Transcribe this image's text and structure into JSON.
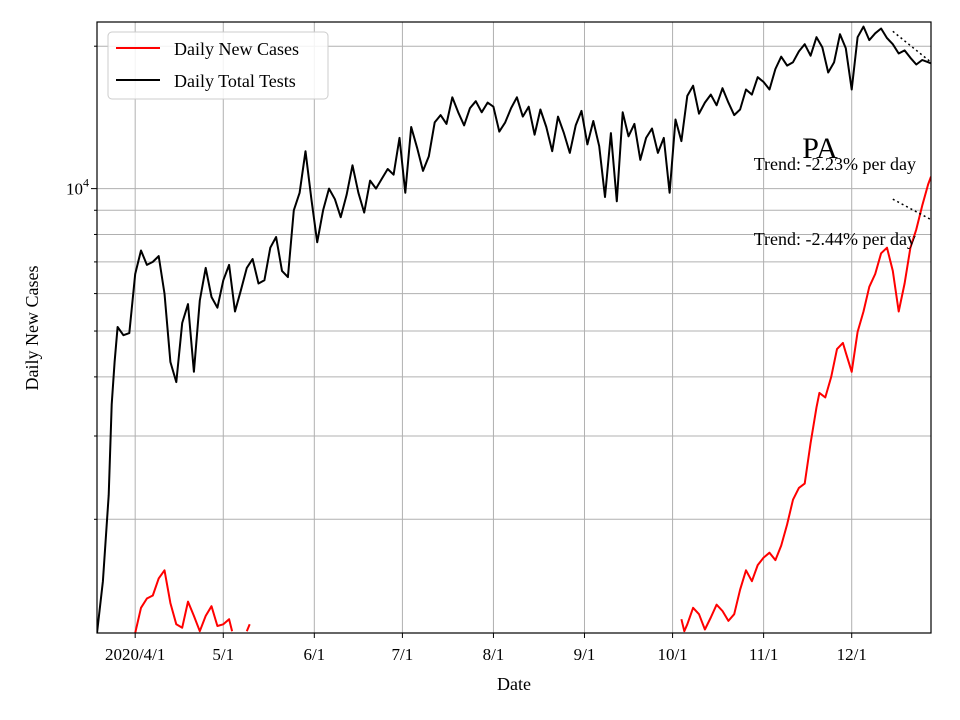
{
  "chart_data": {
    "type": "line",
    "title": "",
    "xlabel": "Date",
    "ylabel": "Daily New Cases",
    "y_scale": "log",
    "ylim": [
      1150,
      22500
    ],
    "xlim": [
      "2020-03-19",
      "2020-12-28"
    ],
    "grid": true,
    "legend_position": "upper-left",
    "x_ticks": [
      {
        "date": "2020-04-01",
        "label": "2020/4/1"
      },
      {
        "date": "2020-05-01",
        "label": "5/1"
      },
      {
        "date": "2020-06-01",
        "label": "6/1"
      },
      {
        "date": "2020-07-01",
        "label": "7/1"
      },
      {
        "date": "2020-08-01",
        "label": "8/1"
      },
      {
        "date": "2020-09-01",
        "label": "9/1"
      },
      {
        "date": "2020-10-01",
        "label": "10/1"
      },
      {
        "date": "2020-11-01",
        "label": "11/1"
      },
      {
        "date": "2020-12-01",
        "label": "12/1"
      }
    ],
    "y_major_tick": {
      "value": 10000,
      "label_base": "10",
      "label_exp": "4"
    },
    "y_minor_ticks": [
      2000,
      3000,
      4000,
      5000,
      6000,
      7000,
      8000,
      9000,
      20000
    ],
    "series": [
      {
        "name": "Daily New Cases",
        "color": "#ff0000",
        "points": [
          [
            "2020-04-01",
            1150
          ],
          [
            "2020-04-03",
            1300
          ],
          [
            "2020-04-05",
            1360
          ],
          [
            "2020-04-07",
            1380
          ],
          [
            "2020-04-09",
            1500
          ],
          [
            "2020-04-11",
            1560
          ],
          [
            "2020-04-13",
            1330
          ],
          [
            "2020-04-15",
            1200
          ],
          [
            "2020-04-17",
            1180
          ],
          [
            "2020-04-19",
            1340
          ],
          [
            "2020-04-21",
            1250
          ],
          [
            "2020-04-23",
            1160
          ],
          [
            "2020-04-25",
            1250
          ],
          [
            "2020-04-27",
            1310
          ],
          [
            "2020-04-29",
            1190
          ],
          [
            "2020-05-01",
            1200
          ],
          [
            "2020-05-03",
            1230
          ],
          [
            "2020-05-04",
            1160
          ],
          [
            null,
            null
          ],
          [
            "2020-05-09",
            1160
          ],
          [
            "2020-05-10",
            1200
          ],
          [
            null,
            null
          ],
          [
            "2020-10-04",
            1230
          ],
          [
            "2020-10-05",
            1160
          ],
          [
            "2020-10-06",
            1200
          ],
          [
            "2020-10-08",
            1300
          ],
          [
            "2020-10-10",
            1260
          ],
          [
            "2020-10-12",
            1170
          ],
          [
            "2020-10-14",
            1240
          ],
          [
            "2020-10-16",
            1320
          ],
          [
            "2020-10-18",
            1280
          ],
          [
            "2020-10-20",
            1220
          ],
          [
            "2020-10-22",
            1260
          ],
          [
            "2020-10-24",
            1420
          ],
          [
            "2020-10-26",
            1560
          ],
          [
            "2020-10-28",
            1480
          ],
          [
            "2020-10-30",
            1600
          ],
          [
            "2020-11-01",
            1660
          ],
          [
            "2020-11-03",
            1700
          ],
          [
            "2020-11-05",
            1640
          ],
          [
            "2020-11-07",
            1760
          ],
          [
            "2020-11-09",
            1950
          ],
          [
            "2020-11-11",
            2200
          ],
          [
            "2020-11-13",
            2330
          ],
          [
            "2020-11-15",
            2380
          ],
          [
            "2020-11-17",
            2900
          ],
          [
            "2020-11-19",
            3450
          ],
          [
            "2020-11-20",
            3700
          ],
          [
            "2020-11-22",
            3620
          ],
          [
            "2020-11-24",
            4000
          ],
          [
            "2020-11-26",
            4580
          ],
          [
            "2020-11-28",
            4720
          ],
          [
            "2020-11-29",
            4500
          ],
          [
            "2020-12-01",
            4100
          ],
          [
            "2020-12-03",
            4980
          ],
          [
            "2020-12-05",
            5500
          ],
          [
            "2020-12-07",
            6200
          ],
          [
            "2020-12-09",
            6600
          ],
          [
            "2020-12-11",
            7300
          ],
          [
            "2020-12-13",
            7500
          ],
          [
            "2020-12-15",
            6700
          ],
          [
            "2020-12-17",
            5500
          ],
          [
            "2020-12-19",
            6300
          ],
          [
            "2020-12-21",
            7500
          ],
          [
            "2020-12-23",
            8200
          ],
          [
            "2020-12-25",
            9200
          ],
          [
            "2020-12-27",
            10200
          ],
          [
            "2020-12-28",
            10600
          ]
        ]
      },
      {
        "name": "Daily Total Tests",
        "color": "#000000",
        "points": [
          [
            "2020-03-19",
            1150
          ],
          [
            "2020-03-21",
            1480
          ],
          [
            "2020-03-23",
            2250
          ],
          [
            "2020-03-24",
            3500
          ],
          [
            "2020-03-25",
            4300
          ],
          [
            "2020-03-26",
            5100
          ],
          [
            "2020-03-28",
            4900
          ],
          [
            "2020-03-30",
            4950
          ],
          [
            "2020-04-01",
            6600
          ],
          [
            "2020-04-03",
            7400
          ],
          [
            "2020-04-05",
            6900
          ],
          [
            "2020-04-07",
            7000
          ],
          [
            "2020-04-09",
            7200
          ],
          [
            "2020-04-11",
            6000
          ],
          [
            "2020-04-13",
            4300
          ],
          [
            "2020-04-15",
            3900
          ],
          [
            "2020-04-17",
            5200
          ],
          [
            "2020-04-19",
            5700
          ],
          [
            "2020-04-21",
            4100
          ],
          [
            "2020-04-23",
            5800
          ],
          [
            "2020-04-25",
            6800
          ],
          [
            "2020-04-27",
            5900
          ],
          [
            "2020-04-29",
            5600
          ],
          [
            "2020-05-01",
            6400
          ],
          [
            "2020-05-03",
            6900
          ],
          [
            "2020-05-05",
            5500
          ],
          [
            "2020-05-07",
            6100
          ],
          [
            "2020-05-09",
            6800
          ],
          [
            "2020-05-11",
            7100
          ],
          [
            "2020-05-13",
            6300
          ],
          [
            "2020-05-15",
            6400
          ],
          [
            "2020-05-17",
            7500
          ],
          [
            "2020-05-19",
            7900
          ],
          [
            "2020-05-21",
            6700
          ],
          [
            "2020-05-23",
            6500
          ],
          [
            "2020-05-25",
            9000
          ],
          [
            "2020-05-27",
            9800
          ],
          [
            "2020-05-29",
            12000
          ],
          [
            "2020-05-31",
            9500
          ],
          [
            "2020-06-02",
            7700
          ],
          [
            "2020-06-04",
            9000
          ],
          [
            "2020-06-06",
            10000
          ],
          [
            "2020-06-08",
            9500
          ],
          [
            "2020-06-10",
            8700
          ],
          [
            "2020-06-12",
            9700
          ],
          [
            "2020-06-14",
            11200
          ],
          [
            "2020-06-16",
            9800
          ],
          [
            "2020-06-18",
            8900
          ],
          [
            "2020-06-20",
            10400
          ],
          [
            "2020-06-22",
            10000
          ],
          [
            "2020-06-24",
            10500
          ],
          [
            "2020-06-26",
            11000
          ],
          [
            "2020-06-28",
            10700
          ],
          [
            "2020-06-30",
            12800
          ],
          [
            "2020-07-02",
            9800
          ],
          [
            "2020-07-04",
            13500
          ],
          [
            "2020-07-06",
            12200
          ],
          [
            "2020-07-08",
            10900
          ],
          [
            "2020-07-10",
            11700
          ],
          [
            "2020-07-12",
            13800
          ],
          [
            "2020-07-14",
            14300
          ],
          [
            "2020-07-16",
            13700
          ],
          [
            "2020-07-18",
            15600
          ],
          [
            "2020-07-20",
            14500
          ],
          [
            "2020-07-22",
            13600
          ],
          [
            "2020-07-24",
            14800
          ],
          [
            "2020-07-26",
            15300
          ],
          [
            "2020-07-28",
            14500
          ],
          [
            "2020-07-30",
            15200
          ],
          [
            "2020-08-01",
            14900
          ],
          [
            "2020-08-03",
            13200
          ],
          [
            "2020-08-05",
            13800
          ],
          [
            "2020-08-07",
            14800
          ],
          [
            "2020-08-09",
            15600
          ],
          [
            "2020-08-11",
            14200
          ],
          [
            "2020-08-13",
            14900
          ],
          [
            "2020-08-15",
            13000
          ],
          [
            "2020-08-17",
            14700
          ],
          [
            "2020-08-19",
            13500
          ],
          [
            "2020-08-21",
            12000
          ],
          [
            "2020-08-23",
            14200
          ],
          [
            "2020-08-25",
            13100
          ],
          [
            "2020-08-27",
            11900
          ],
          [
            "2020-08-29",
            13600
          ],
          [
            "2020-08-31",
            14600
          ],
          [
            "2020-09-02",
            12400
          ],
          [
            "2020-09-04",
            13900
          ],
          [
            "2020-09-06",
            12300
          ],
          [
            "2020-09-08",
            9600
          ],
          [
            "2020-09-10",
            13100
          ],
          [
            "2020-09-12",
            9400
          ],
          [
            "2020-09-14",
            14500
          ],
          [
            "2020-09-16",
            12900
          ],
          [
            "2020-09-18",
            13700
          ],
          [
            "2020-09-20",
            11500
          ],
          [
            "2020-09-22",
            12800
          ],
          [
            "2020-09-24",
            13400
          ],
          [
            "2020-09-26",
            11900
          ],
          [
            "2020-09-28",
            12800
          ],
          [
            "2020-09-30",
            9800
          ],
          [
            "2020-10-02",
            14000
          ],
          [
            "2020-10-04",
            12600
          ],
          [
            "2020-10-06",
            15700
          ],
          [
            "2020-10-08",
            16500
          ],
          [
            "2020-10-10",
            14400
          ],
          [
            "2020-10-12",
            15200
          ],
          [
            "2020-10-14",
            15800
          ],
          [
            "2020-10-16",
            15000
          ],
          [
            "2020-10-18",
            16300
          ],
          [
            "2020-10-20",
            15200
          ],
          [
            "2020-10-22",
            14300
          ],
          [
            "2020-10-24",
            14700
          ],
          [
            "2020-10-26",
            16200
          ],
          [
            "2020-10-28",
            15800
          ],
          [
            "2020-10-30",
            17200
          ],
          [
            "2020-11-01",
            16800
          ],
          [
            "2020-11-03",
            16200
          ],
          [
            "2020-11-05",
            17900
          ],
          [
            "2020-11-07",
            19000
          ],
          [
            "2020-11-09",
            18200
          ],
          [
            "2020-11-11",
            18500
          ],
          [
            "2020-11-13",
            19500
          ],
          [
            "2020-11-15",
            20200
          ],
          [
            "2020-11-17",
            19100
          ],
          [
            "2020-11-19",
            20900
          ],
          [
            "2020-11-21",
            19900
          ],
          [
            "2020-11-23",
            17600
          ],
          [
            "2020-11-25",
            18500
          ],
          [
            "2020-11-27",
            21200
          ],
          [
            "2020-11-29",
            19800
          ],
          [
            "2020-12-01",
            16200
          ],
          [
            "2020-12-03",
            20900
          ],
          [
            "2020-12-05",
            22000
          ],
          [
            "2020-12-07",
            20600
          ],
          [
            "2020-12-09",
            21300
          ],
          [
            "2020-12-11",
            21800
          ],
          [
            "2020-12-13",
            20800
          ],
          [
            "2020-12-15",
            20200
          ],
          [
            "2020-12-17",
            19300
          ],
          [
            "2020-12-19",
            19600
          ],
          [
            "2020-12-21",
            18900
          ],
          [
            "2020-12-23",
            18300
          ],
          [
            "2020-12-25",
            18700
          ],
          [
            "2020-12-27",
            18500
          ],
          [
            "2020-12-28",
            18400
          ]
        ]
      }
    ],
    "trend_lines": [
      {
        "points": [
          [
            "2020-12-15",
            21500
          ],
          [
            "2020-12-28",
            18500
          ]
        ],
        "style": "dotted",
        "color": "#000000"
      },
      {
        "points": [
          [
            "2020-12-15",
            9500
          ],
          [
            "2020-12-28",
            8600
          ]
        ],
        "style": "dotted",
        "color": "#000000"
      }
    ],
    "annotations": [
      {
        "text": "PA",
        "style": "large"
      },
      {
        "text": "Trend: -2.23% per day",
        "style": "normal"
      },
      {
        "text": "Trend: -2.44% per day",
        "style": "normal"
      }
    ]
  }
}
